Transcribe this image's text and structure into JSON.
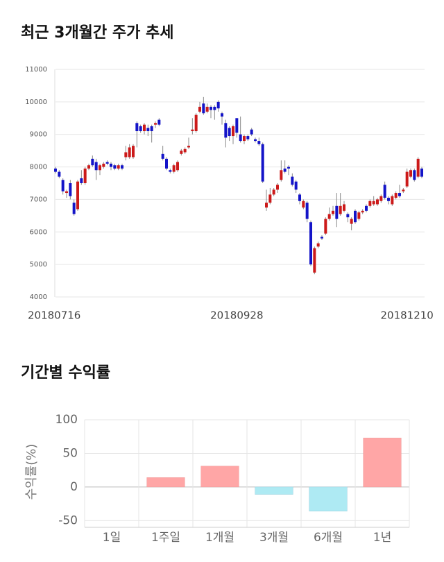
{
  "chart_data": [
    {
      "type": "candlestick",
      "title": "최근 3개월간 주가 추세",
      "categories": [
        "20180716",
        null,
        null,
        null,
        null,
        null,
        null,
        null,
        null,
        null,
        null,
        null,
        null,
        null,
        null,
        null,
        null,
        null,
        null,
        null,
        null,
        null,
        null,
        null,
        null,
        null,
        null,
        null,
        null,
        null,
        null,
        null,
        null,
        null,
        null,
        null,
        null,
        null,
        null,
        null,
        null,
        null,
        null,
        null,
        null,
        null,
        null,
        null,
        null,
        "20180928",
        null,
        null,
        null,
        null,
        null,
        null,
        null,
        null,
        null,
        null,
        null,
        null,
        null,
        null,
        null,
        null,
        null,
        null,
        null,
        null,
        null,
        null,
        null,
        null,
        null,
        null,
        null,
        null,
        null,
        null,
        null,
        null,
        null,
        null,
        null,
        null,
        null,
        null,
        null,
        null,
        null,
        null,
        null,
        null,
        null,
        "20181210",
        null,
        null,
        null,
        null
      ],
      "open": [
        7950,
        7850,
        7600,
        7200,
        7500,
        6900,
        6700,
        7650,
        7500,
        7950,
        8250,
        8150,
        7900,
        8000,
        8150,
        8100,
        8050,
        7950,
        8050,
        8300,
        8300,
        8300,
        9350,
        9250,
        9100,
        9200,
        9250,
        9300,
        9450,
        8400,
        8250,
        7900,
        7850,
        7900,
        8400,
        8450,
        8600,
        9100,
        9100,
        9700,
        9950,
        9700,
        9850,
        9850,
        10000,
        9650,
        9350,
        9200,
        8950,
        9500,
        9000,
        8800,
        8950,
        9150,
        8850,
        8800,
        8700,
        6750,
        6900,
        7150,
        7300,
        7600,
        7950,
        8000,
        7700,
        7550,
        7150,
        6750,
        6900,
        6300,
        4750,
        5550,
        5850,
        5950,
        6400,
        6550,
        6800,
        6550,
        6650,
        6550,
        6250,
        6650,
        6400,
        6600,
        6800,
        6800,
        6850,
        6850,
        6950,
        7450,
        7050,
        6850,
        7050,
        7200,
        7250,
        7400,
        7700,
        7900,
        7700,
        7950
      ],
      "high": [
        8000,
        7900,
        7650,
        7300,
        7600,
        7000,
        7600,
        7900,
        8000,
        8100,
        8350,
        8250,
        8100,
        8150,
        8200,
        8150,
        8100,
        8100,
        8100,
        8650,
        8700,
        8700,
        9400,
        9300,
        9350,
        9300,
        9300,
        9400,
        9500,
        8650,
        8300,
        7950,
        8100,
        8200,
        8550,
        8600,
        8900,
        9500,
        9650,
        10000,
        10150,
        9950,
        9900,
        9900,
        10050,
        9700,
        9450,
        9250,
        9300,
        9500,
        9550,
        9000,
        9000,
        9200,
        8900,
        8900,
        8750,
        7300,
        7350,
        7350,
        7500,
        8200,
        8200,
        8050,
        7800,
        7600,
        7200,
        7000,
        6950,
        6350,
        5550,
        5700,
        5900,
        6450,
        6750,
        6800,
        7200,
        7200,
        6950,
        6600,
        6450,
        6700,
        6650,
        6700,
        6850,
        7000,
        7100,
        7050,
        7150,
        7550,
        7100,
        7150,
        7250,
        7450,
        7350,
        7950,
        7950,
        7950,
        8300,
        8000
      ],
      "low": [
        7800,
        7650,
        7150,
        7050,
        7000,
        6500,
        6650,
        7450,
        7450,
        7900,
        8000,
        7600,
        7750,
        7950,
        8050,
        7900,
        7900,
        7900,
        7900,
        8200,
        8250,
        8250,
        8600,
        9050,
        9000,
        8950,
        8750,
        9200,
        9250,
        8200,
        7900,
        7800,
        7800,
        7850,
        8350,
        8400,
        8550,
        9000,
        9050,
        9650,
        9600,
        9650,
        9500,
        9450,
        9700,
        9300,
        8600,
        8800,
        8700,
        8900,
        8750,
        8700,
        8800,
        8950,
        8750,
        8650,
        7500,
        6650,
        6850,
        7100,
        7200,
        7550,
        7800,
        7750,
        7400,
        7200,
        6850,
        6700,
        6300,
        4950,
        4700,
        5500,
        5750,
        5900,
        6350,
        6500,
        6150,
        6500,
        6600,
        6300,
        6050,
        6250,
        6350,
        6550,
        6600,
        6750,
        6800,
        6800,
        6900,
        7000,
        6850,
        6800,
        7000,
        7050,
        7200,
        7350,
        7650,
        7550,
        7650,
        7650
      ],
      "close": [
        7850,
        7700,
        7250,
        7250,
        7100,
        6550,
        7550,
        7500,
        7950,
        8050,
        8050,
        7900,
        8050,
        8100,
        8100,
        8000,
        7950,
        8050,
        7950,
        8450,
        8600,
        8650,
        9100,
        9100,
        9300,
        9100,
        9100,
        9350,
        9300,
        8250,
        7950,
        7850,
        8050,
        8150,
        8500,
        8550,
        8650,
        9150,
        9600,
        9850,
        9650,
        9850,
        9750,
        9750,
        9800,
        9550,
        8900,
        8950,
        9250,
        9050,
        8800,
        8950,
        8850,
        9000,
        8800,
        8700,
        7550,
        6900,
        7150,
        7300,
        7450,
        7900,
        7850,
        7950,
        7450,
        7300,
        6950,
        6950,
        6400,
        5000,
        5500,
        5650,
        5800,
        6400,
        6550,
        6650,
        6400,
        6800,
        6850,
        6450,
        6400,
        6300,
        6600,
        6650,
        6650,
        6950,
        6950,
        7000,
        7100,
        7050,
        6950,
        7100,
        7200,
        7100,
        7300,
        7850,
        7900,
        7600,
        8250,
        7700
      ],
      "up_color": "#cc1a1a",
      "down_color": "#1414c8",
      "ylim": [
        4000,
        11000
      ],
      "yticks": [
        4000,
        5000,
        6000,
        7000,
        8000,
        9000,
        10000,
        11000
      ],
      "grid": true
    },
    {
      "type": "bar",
      "title": "기간별 수익률",
      "ylabel": "수익률(%)",
      "categories": [
        "1일",
        "1주일",
        "1개월",
        "3개월",
        "6개월",
        "1년"
      ],
      "values": [
        0,
        14,
        31,
        -11,
        -36,
        73
      ],
      "positive_color": "#ffa6a6",
      "negative_color": "#aeeaf3",
      "ylim": [
        -60,
        100
      ],
      "yticks": [
        -50,
        0,
        50,
        100
      ],
      "grid": true
    }
  ]
}
